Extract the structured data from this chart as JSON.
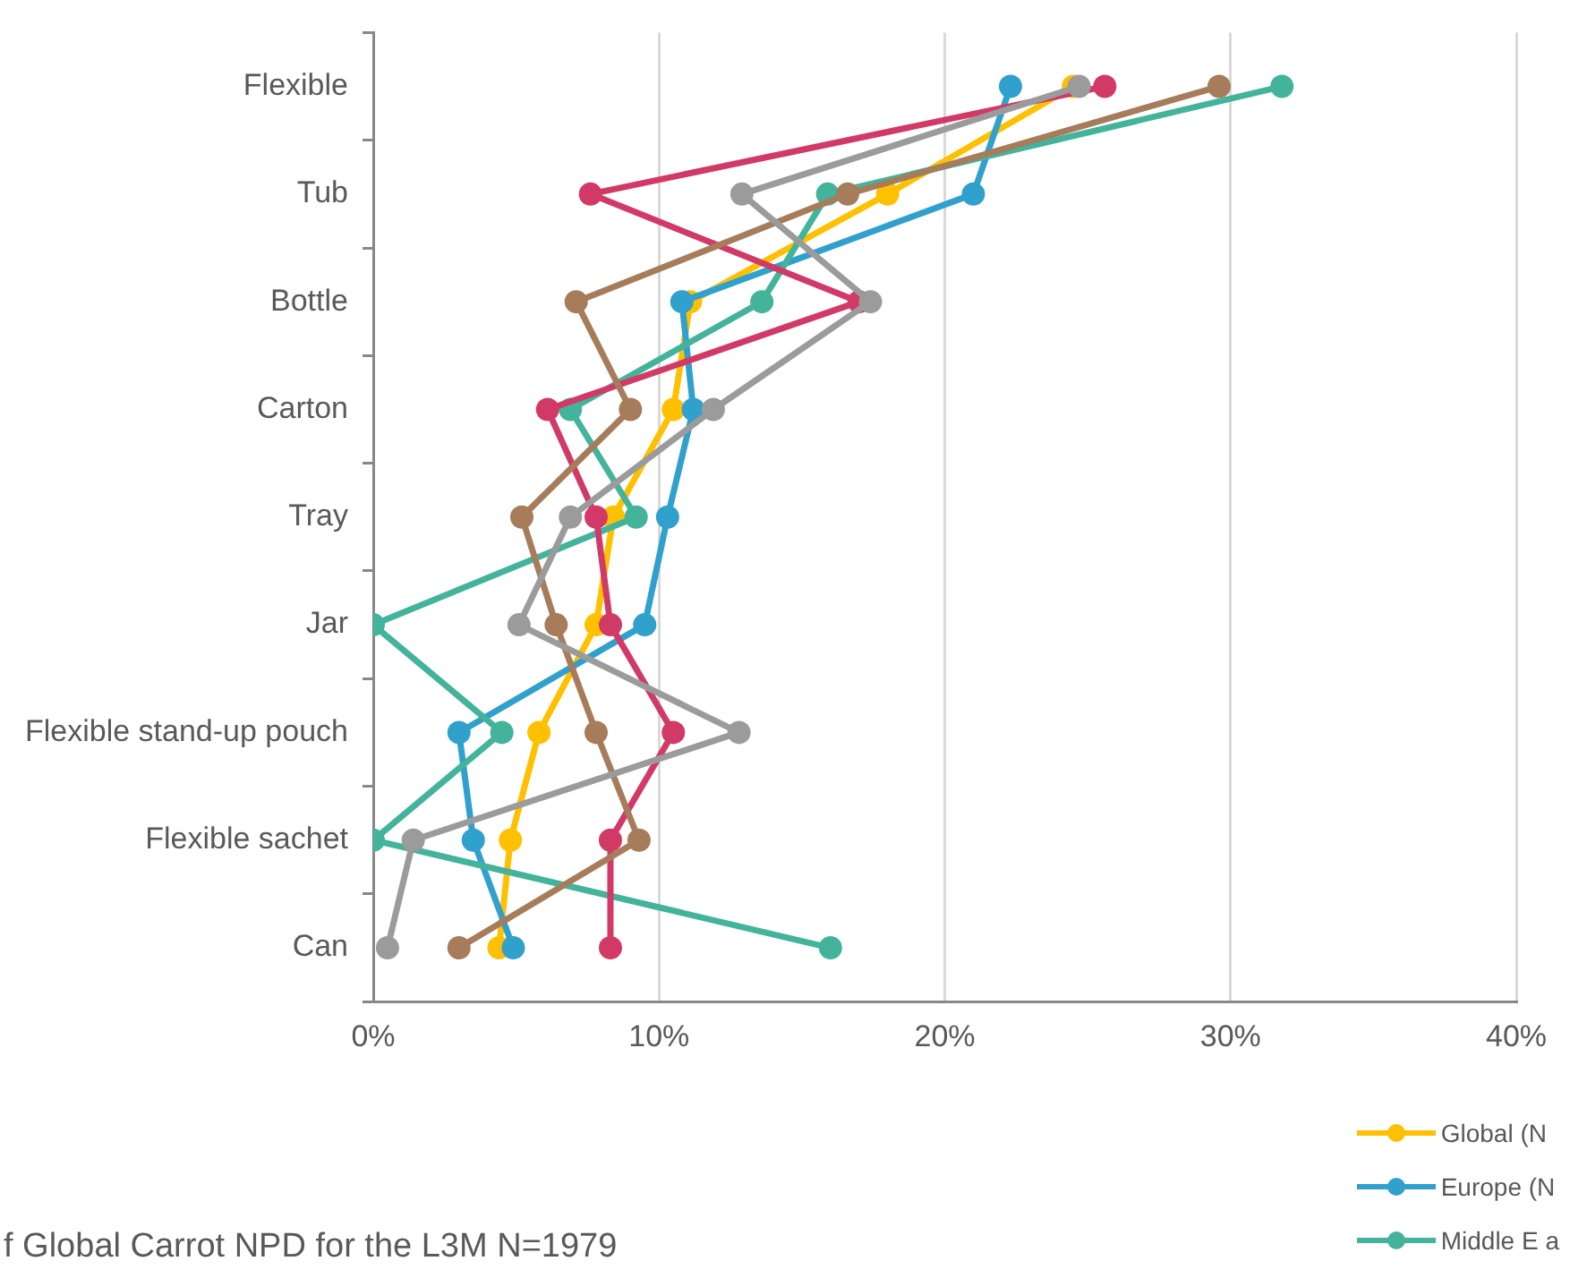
{
  "chart_data": {
    "type": "line",
    "orientation": "horizontal",
    "categories": [
      "Flexible",
      "Tub",
      "Bottle",
      "Carton",
      "Tray",
      "Jar",
      "Flexible stand-up pouch",
      "Flexible sachet",
      "Can"
    ],
    "series": [
      {
        "name": "Global (N",
        "color": "#ffc000",
        "values": [
          24.5,
          18.0,
          11.1,
          10.5,
          8.4,
          7.8,
          5.8,
          4.8,
          4.4
        ]
      },
      {
        "name": "Europe (N",
        "color": "#30a0cc",
        "values": [
          22.3,
          21.0,
          10.8,
          11.2,
          10.3,
          9.5,
          3.0,
          3.5,
          4.9
        ]
      },
      {
        "name": "Middle E a",
        "color": "#44b39c",
        "values": [
          31.8,
          15.9,
          13.6,
          6.9,
          9.2,
          0,
          4.5,
          0,
          16.0
        ]
      },
      {
        "color": "#d13a66",
        "values": [
          25.6,
          7.6,
          17.0,
          6.1,
          7.8,
          8.3,
          10.5,
          8.3,
          8.3
        ]
      },
      {
        "color": "#a67c5b",
        "values": [
          29.6,
          16.6,
          7.1,
          9.0,
          5.2,
          6.4,
          7.8,
          9.3,
          3.0
        ]
      },
      {
        "color": "#9b9b9b",
        "values": [
          24.7,
          12.9,
          17.4,
          11.9,
          6.9,
          5.1,
          12.8,
          1.4,
          0.5
        ]
      }
    ],
    "xlim": [
      0,
      40
    ],
    "xticks": [
      {
        "value": 0,
        "label": "0%"
      },
      {
        "value": 10,
        "label": "10%"
      },
      {
        "value": 20,
        "label": "20%"
      },
      {
        "value": 30,
        "label": "30%"
      },
      {
        "value": 40,
        "label": "40%"
      }
    ],
    "grid": "x",
    "legend": "bottom right",
    "marker": "circle",
    "line_style": "solid",
    "annotations": [
      "f Global Carrot NPD for the L3M N=1979"
    ]
  }
}
